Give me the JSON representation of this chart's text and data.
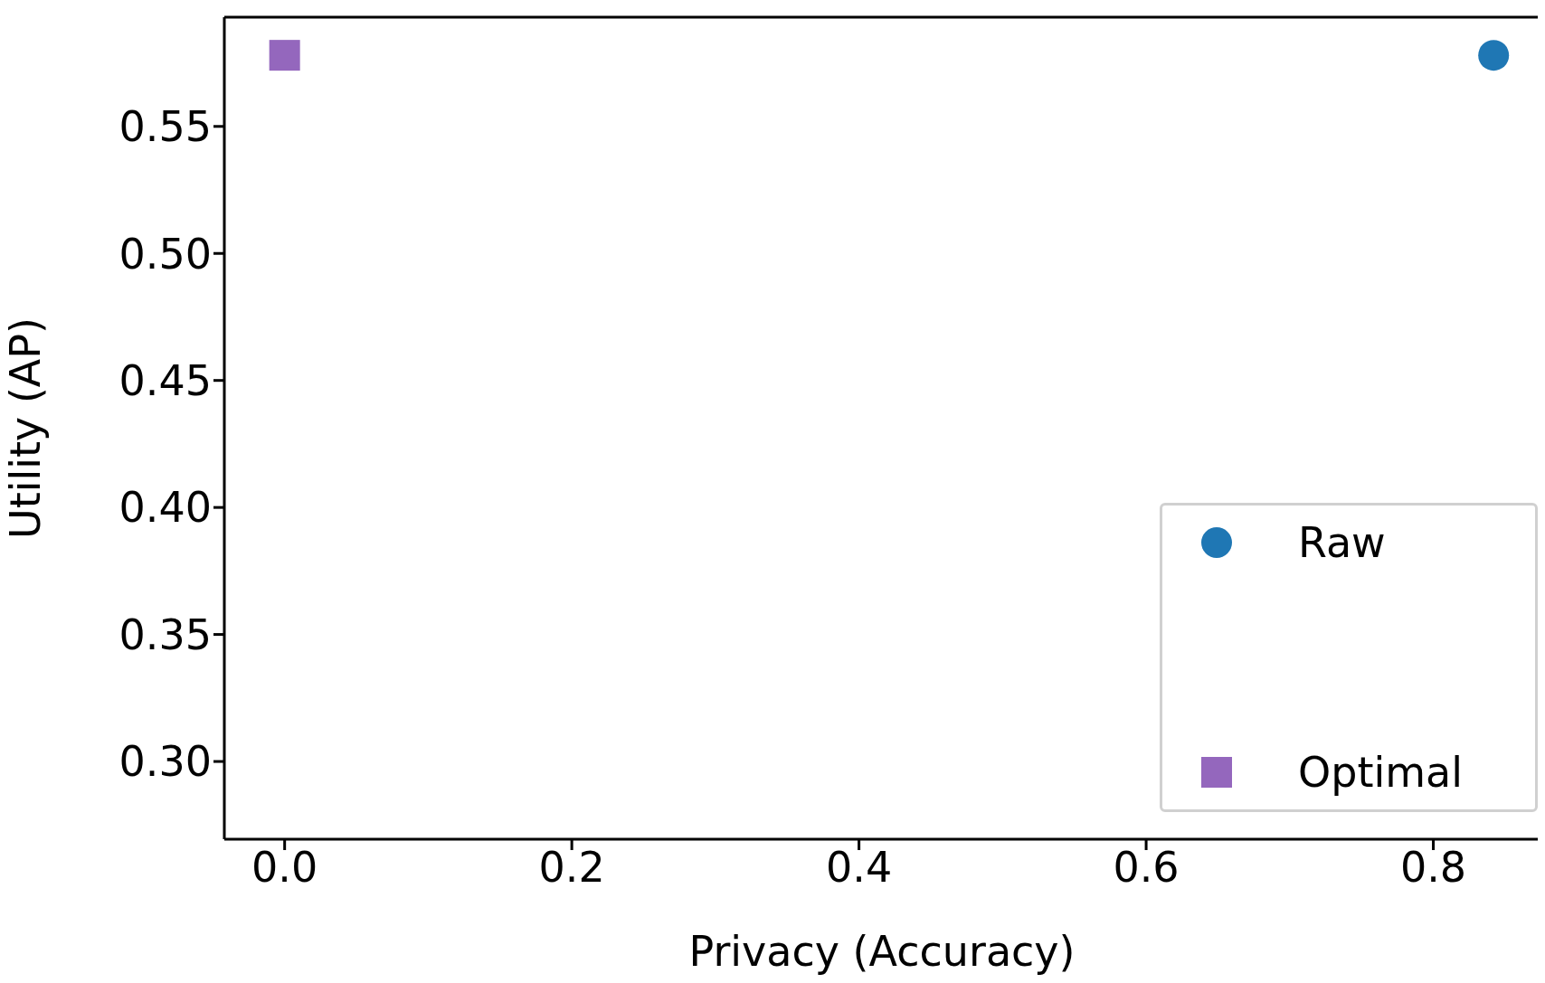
{
  "chart_data": {
    "type": "scatter",
    "xlabel": "Privacy (Accuracy)",
    "ylabel": "Utility (AP)",
    "xlim": [
      -0.042,
      0.874
    ],
    "xticks": [
      {
        "value": 0,
        "label": "0.0"
      },
      0.2,
      0.4,
      0.6,
      0.8
    ],
    "ylim": [
      0.2694,
      0.593
    ],
    "yticks": [
      {
        "value": 0.3,
        "label": "0.30"
      },
      0.35,
      {
        "value": 0.4,
        "label": "0.40"
      },
      0.45,
      {
        "value": 0.5,
        "label": "0.50"
      },
      0.55
    ],
    "grid": false,
    "legend": "bottom right",
    "series": [
      {
        "name": "Raw",
        "color": "#1f77b4",
        "marker": "circle",
        "x": [
          0.842
        ],
        "values": [
          0.578
        ]
      },
      {
        "name": "Optimal",
        "color": "#9467bd",
        "marker": "square",
        "x": [
          0.0
        ],
        "values": [
          0.578
        ]
      }
    ]
  }
}
